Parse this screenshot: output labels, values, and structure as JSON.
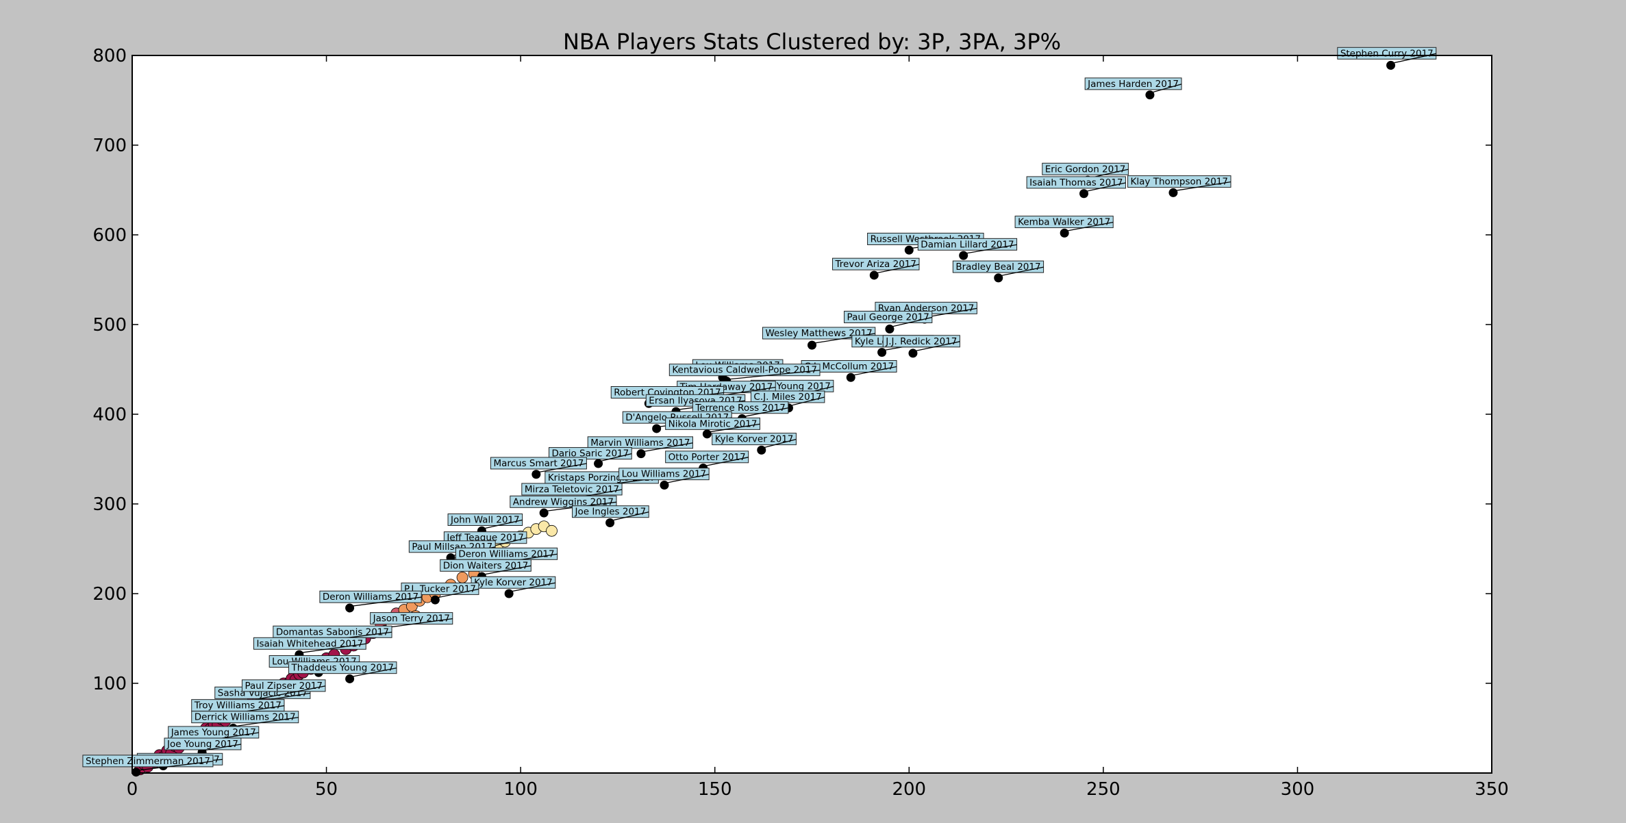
{
  "chart_data": {
    "type": "scatter",
    "title": "NBA Players Stats Clustered by: 3P, 3PA, 3P%",
    "xlabel": "",
    "ylabel": "",
    "xlim": [
      0,
      350
    ],
    "ylim": [
      0,
      800
    ],
    "x_ticks": [
      "0",
      "50",
      "100",
      "150",
      "200",
      "250",
      "300",
      "350"
    ],
    "y_ticks": [
      "100",
      "200",
      "300",
      "400",
      "500",
      "600",
      "700",
      "800"
    ],
    "grid": false,
    "legend": "none",
    "colors": {
      "background": "#c2c2c2",
      "plot_area": "#ffffff",
      "cluster_low": "#a3144a",
      "cluster_mid_low": "#d05a6a",
      "cluster_mid": "#f09a5e",
      "cluster_high": "#fbe8a8",
      "centroid": "#000000",
      "annotation_box": "#add8e6"
    },
    "cluster_points": [
      {
        "x": 2,
        "y": 4,
        "c": "cluster_low"
      },
      {
        "x": 3,
        "y": 10,
        "c": "cluster_low"
      },
      {
        "x": 4,
        "y": 7,
        "c": "cluster_low"
      },
      {
        "x": 5,
        "y": 14,
        "c": "cluster_low"
      },
      {
        "x": 6,
        "y": 12,
        "c": "cluster_low"
      },
      {
        "x": 7,
        "y": 20,
        "c": "cluster_low"
      },
      {
        "x": 8,
        "y": 18,
        "c": "cluster_low"
      },
      {
        "x": 9,
        "y": 25,
        "c": "cluster_low"
      },
      {
        "x": 10,
        "y": 22,
        "c": "cluster_low"
      },
      {
        "x": 11,
        "y": 30,
        "c": "cluster_low"
      },
      {
        "x": 12,
        "y": 28,
        "c": "cluster_low"
      },
      {
        "x": 13,
        "y": 35,
        "c": "cluster_low"
      },
      {
        "x": 14,
        "y": 33,
        "c": "cluster_low"
      },
      {
        "x": 15,
        "y": 40,
        "c": "cluster_low"
      },
      {
        "x": 16,
        "y": 38,
        "c": "cluster_low"
      },
      {
        "x": 17,
        "y": 45,
        "c": "cluster_low"
      },
      {
        "x": 18,
        "y": 44,
        "c": "cluster_low"
      },
      {
        "x": 19,
        "y": 50,
        "c": "cluster_low"
      },
      {
        "x": 20,
        "y": 49,
        "c": "cluster_low"
      },
      {
        "x": 21,
        "y": 55,
        "c": "cluster_low"
      },
      {
        "x": 22,
        "y": 54,
        "c": "cluster_low"
      },
      {
        "x": 23,
        "y": 60,
        "c": "cluster_low"
      },
      {
        "x": 24,
        "y": 58,
        "c": "cluster_low"
      },
      {
        "x": 25,
        "y": 65,
        "c": "cluster_low"
      },
      {
        "x": 26,
        "y": 63,
        "c": "cluster_low"
      },
      {
        "x": 27,
        "y": 70,
        "c": "cluster_low"
      },
      {
        "x": 28,
        "y": 68,
        "c": "cluster_low"
      },
      {
        "x": 29,
        "y": 75,
        "c": "cluster_low"
      },
      {
        "x": 30,
        "y": 73,
        "c": "cluster_low"
      },
      {
        "x": 31,
        "y": 80,
        "c": "cluster_low"
      },
      {
        "x": 32,
        "y": 78,
        "c": "cluster_low"
      },
      {
        "x": 33,
        "y": 85,
        "c": "cluster_low"
      },
      {
        "x": 34,
        "y": 84,
        "c": "cluster_low"
      },
      {
        "x": 35,
        "y": 90,
        "c": "cluster_low"
      },
      {
        "x": 36,
        "y": 89,
        "c": "cluster_low"
      },
      {
        "x": 37,
        "y": 95,
        "c": "cluster_low"
      },
      {
        "x": 38,
        "y": 94,
        "c": "cluster_low"
      },
      {
        "x": 39,
        "y": 100,
        "c": "cluster_low"
      },
      {
        "x": 40,
        "y": 99,
        "c": "cluster_low"
      },
      {
        "x": 41,
        "y": 105,
        "c": "cluster_low"
      },
      {
        "x": 42,
        "y": 104,
        "c": "cluster_low"
      },
      {
        "x": 43,
        "y": 110,
        "c": "cluster_low"
      },
      {
        "x": 44,
        "y": 112,
        "c": "cluster_low"
      },
      {
        "x": 45,
        "y": 118,
        "c": "cluster_low"
      },
      {
        "x": 46,
        "y": 116,
        "c": "cluster_low"
      },
      {
        "x": 48,
        "y": 125,
        "c": "cluster_low"
      },
      {
        "x": 50,
        "y": 128,
        "c": "cluster_low"
      },
      {
        "x": 52,
        "y": 132,
        "c": "cluster_low"
      },
      {
        "x": 55,
        "y": 138,
        "c": "cluster_low"
      },
      {
        "x": 57,
        "y": 142,
        "c": "cluster_low"
      },
      {
        "x": 60,
        "y": 150,
        "c": "cluster_low"
      },
      {
        "x": 62,
        "y": 156,
        "c": "cluster_low"
      },
      {
        "x": 58,
        "y": 148,
        "c": "cluster_mid_low"
      },
      {
        "x": 64,
        "y": 165,
        "c": "cluster_mid_low"
      },
      {
        "x": 66,
        "y": 172,
        "c": "cluster_mid_low"
      },
      {
        "x": 68,
        "y": 178,
        "c": "cluster_mid_low"
      },
      {
        "x": 70,
        "y": 182,
        "c": "cluster_mid"
      },
      {
        "x": 72,
        "y": 186,
        "c": "cluster_mid"
      },
      {
        "x": 73,
        "y": 175,
        "c": "cluster_mid"
      },
      {
        "x": 74,
        "y": 192,
        "c": "cluster_mid"
      },
      {
        "x": 76,
        "y": 196,
        "c": "cluster_mid"
      },
      {
        "x": 78,
        "y": 200,
        "c": "cluster_mid"
      },
      {
        "x": 80,
        "y": 205,
        "c": "cluster_mid"
      },
      {
        "x": 82,
        "y": 210,
        "c": "cluster_mid"
      },
      {
        "x": 85,
        "y": 218,
        "c": "cluster_mid"
      },
      {
        "x": 88,
        "y": 222,
        "c": "cluster_mid"
      },
      {
        "x": 90,
        "y": 240,
        "c": "cluster_high"
      },
      {
        "x": 92,
        "y": 248,
        "c": "cluster_high"
      },
      {
        "x": 94,
        "y": 252,
        "c": "cluster_high"
      },
      {
        "x": 96,
        "y": 258,
        "c": "cluster_high"
      },
      {
        "x": 98,
        "y": 262,
        "c": "cluster_high"
      },
      {
        "x": 100,
        "y": 264,
        "c": "cluster_high"
      },
      {
        "x": 102,
        "y": 268,
        "c": "cluster_high"
      },
      {
        "x": 104,
        "y": 272,
        "c": "cluster_high"
      },
      {
        "x": 106,
        "y": 275,
        "c": "cluster_high"
      },
      {
        "x": 108,
        "y": 270,
        "c": "cluster_high"
      }
    ],
    "labeled_points": [
      {
        "name": "Stephen Curry 2017",
        "x": 324,
        "y": 789,
        "lx": 311,
        "ly": 799
      },
      {
        "name": "James Harden 2017",
        "x": 262,
        "y": 756,
        "lx": 246,
        "ly": 765
      },
      {
        "name": "Eric Gordon 2017",
        "x": 246,
        "y": 661,
        "lx": 235,
        "ly": 670
      },
      {
        "name": "Isaiah Thomas 2017",
        "x": 245,
        "y": 646,
        "lx": 231,
        "ly": 655
      },
      {
        "name": "Klay Thompson 2017",
        "x": 268,
        "y": 647,
        "lx": 257,
        "ly": 656
      },
      {
        "name": "Kemba Walker 2017",
        "x": 240,
        "y": 602,
        "lx": 228,
        "ly": 611
      },
      {
        "name": "Russell Westbrook 2017",
        "x": 200,
        "y": 583,
        "lx": 190,
        "ly": 592
      },
      {
        "name": "Damian Lillard 2017",
        "x": 214,
        "y": 577,
        "lx": 203,
        "ly": 586
      },
      {
        "name": "Trevor Ariza 2017",
        "x": 191,
        "y": 555,
        "lx": 181,
        "ly": 564
      },
      {
        "name": "Bradley Beal 2017",
        "x": 223,
        "y": 552,
        "lx": 212,
        "ly": 561
      },
      {
        "name": "Ryan Anderson 2017",
        "x": 204,
        "y": 506,
        "lx": 192,
        "ly": 515
      },
      {
        "name": "Paul George 2017",
        "x": 195,
        "y": 495,
        "lx": 184,
        "ly": 505
      },
      {
        "name": "Wesley Matthews 2017",
        "x": 175,
        "y": 477,
        "lx": 163,
        "ly": 487
      },
      {
        "name": "Kyle Lowry 2017",
        "x": 193,
        "y": 469,
        "lx": 186,
        "ly": 478
      },
      {
        "name": "J.J. Redick 2017",
        "x": 201,
        "y": 468,
        "lx": 194,
        "ly": 478
      },
      {
        "name": "Lou Williams 2017",
        "x": 152,
        "y": 441,
        "lx": 145,
        "ly": 451
      },
      {
        "name": "C.J. McCollum 2017",
        "x": 185,
        "y": 441,
        "lx": 173,
        "ly": 450
      },
      {
        "name": "Kentavious Caldwell-Pope 2017",
        "x": 153,
        "y": 437,
        "lx": 139,
        "ly": 446
      },
      {
        "name": "Nick Young 2017",
        "x": 171,
        "y": 419,
        "lx": 160,
        "ly": 428
      },
      {
        "name": "Tim Hardaway 2017",
        "x": 150,
        "y": 418,
        "lx": 141,
        "ly": 427
      },
      {
        "name": "Robert Covington 2017",
        "x": 133,
        "y": 412,
        "lx": 124,
        "ly": 421
      },
      {
        "name": "C.J. Miles 2017",
        "x": 169,
        "y": 407,
        "lx": 160,
        "ly": 416
      },
      {
        "name": "Ersan Ilyasova 2017",
        "x": 140,
        "y": 403,
        "lx": 133,
        "ly": 412
      },
      {
        "name": "Terrence Ross 2017",
        "x": 157,
        "y": 395,
        "lx": 145,
        "ly": 404
      },
      {
        "name": "D'Angelo Russell 2017",
        "x": 135,
        "y": 384,
        "lx": 127,
        "ly": 393
      },
      {
        "name": "Nikola Mirotic 2017",
        "x": 148,
        "y": 378,
        "lx": 138,
        "ly": 386
      },
      {
        "name": "Kyle Korver 2017",
        "x": 162,
        "y": 360,
        "lx": 150,
        "ly": 369
      },
      {
        "name": "Marvin Williams 2017",
        "x": 131,
        "y": 356,
        "lx": 118,
        "ly": 365
      },
      {
        "name": "Otto Porter 2017",
        "x": 147,
        "y": 340,
        "lx": 138,
        "ly": 349
      },
      {
        "name": "Dario Saric 2017",
        "x": 120,
        "y": 345,
        "lx": 108,
        "ly": 353
      },
      {
        "name": "Marcus Smart 2017",
        "x": 104,
        "y": 333,
        "lx": 93,
        "ly": 342
      },
      {
        "name": "Kristaps Porzingis 2017",
        "x": 116,
        "y": 316,
        "lx": 107,
        "ly": 326
      },
      {
        "name": "Lou Williams 2017",
        "x": 137,
        "y": 321,
        "lx": 126,
        "ly": 330
      },
      {
        "name": "Mirza Teletovic 2017",
        "x": 112,
        "y": 303,
        "lx": 101,
        "ly": 313
      },
      {
        "name": "Andrew Wiggins 2017",
        "x": 106,
        "y": 290,
        "lx": 98,
        "ly": 299
      },
      {
        "name": "Joe Ingles 2017",
        "x": 123,
        "y": 279,
        "lx": 114,
        "ly": 288
      },
      {
        "name": "John Wall 2017",
        "x": 90,
        "y": 270,
        "lx": 82,
        "ly": 279
      },
      {
        "name": "Jeff Teague 2017",
        "x": 91,
        "y": 249,
        "lx": 81,
        "ly": 259
      },
      {
        "name": "Paul Millsap 2017",
        "x": 82,
        "y": 240,
        "lx": 72,
        "ly": 249
      },
      {
        "name": "Deron Williams 2017",
        "x": 94,
        "y": 232,
        "lx": 84,
        "ly": 241
      },
      {
        "name": "Dion Waiters 2017",
        "x": 90,
        "y": 219,
        "lx": 80,
        "ly": 228
      },
      {
        "name": "Kyle Korver 2017",
        "x": 97,
        "y": 200,
        "lx": 88,
        "ly": 209
      },
      {
        "name": "P.J. Tucker 2017",
        "x": 78,
        "y": 193,
        "lx": 70,
        "ly": 202
      },
      {
        "name": "Deron Williams 2017",
        "x": 56,
        "y": 184,
        "lx": 49,
        "ly": 193
      },
      {
        "name": "Jason Terry 2017",
        "x": 65,
        "y": 160,
        "lx": 62,
        "ly": 169
      },
      {
        "name": "Domantas Sabonis 2017",
        "x": 48,
        "y": 145,
        "lx": 37,
        "ly": 154
      },
      {
        "name": "Isaiah Whitehead 2017",
        "x": 43,
        "y": 132,
        "lx": 32,
        "ly": 141
      },
      {
        "name": "Lou Williams 2017",
        "x": 48,
        "y": 112,
        "lx": 36,
        "ly": 121
      },
      {
        "name": "Thaddeus Young 2017",
        "x": 56,
        "y": 105,
        "lx": 41,
        "ly": 114
      },
      {
        "name": "Sasha Vujacic 2017",
        "x": 31,
        "y": 77,
        "lx": 22,
        "ly": 86
      },
      {
        "name": "Paul Zipser 2017",
        "x": 33,
        "y": 81,
        "lx": 29,
        "ly": 94
      },
      {
        "name": "Troy Williams 2017",
        "x": 23,
        "y": 63,
        "lx": 16,
        "ly": 72
      },
      {
        "name": "Derrick Williams 2017",
        "x": 26,
        "y": 50,
        "lx": 16,
        "ly": 59
      },
      {
        "name": "James Young 2017",
        "x": 17,
        "y": 33,
        "lx": 10,
        "ly": 42
      },
      {
        "name": "Joe Young 2017",
        "x": 18,
        "y": 23,
        "lx": 9,
        "ly": 29
      },
      {
        "name": "Ivica Zubac 2017",
        "x": 8,
        "y": 8,
        "lx": 2,
        "ly": 12
      },
      {
        "name": "Stephen Zimmerman 2017",
        "x": 1,
        "y": 1,
        "lx": -12,
        "ly": 10
      }
    ]
  }
}
